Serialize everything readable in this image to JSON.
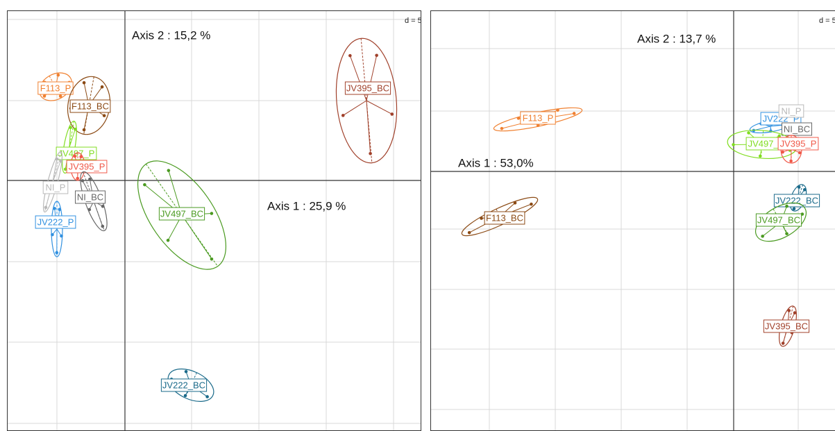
{
  "panels": [
    {
      "scale": "d = 5",
      "axis2": "Axis 2 : 15,2 %",
      "axis1": "Axis 1 : 25,9 %",
      "groups": [
        {
          "name": "F113_P",
          "color": "#f08030"
        },
        {
          "name": "F113_BC",
          "color": "#8b4a14"
        },
        {
          "name": "JV395_BC",
          "color": "#a0402a"
        },
        {
          "name": "JV497_P",
          "color": "#80dd20"
        },
        {
          "name": "JV395_P",
          "color": "#f05848"
        },
        {
          "name": "NI_P",
          "color": "#b8b8b8"
        },
        {
          "name": "NI_BC",
          "color": "#666666"
        },
        {
          "name": "JV222_P",
          "color": "#3090e0"
        },
        {
          "name": "JV497_BC",
          "color": "#4a9a20"
        },
        {
          "name": "JV222_BC",
          "color": "#1a6a8a"
        }
      ]
    },
    {
      "scale": "d = 5",
      "axis2": "Axis 2 : 13,7 %",
      "axis1": "Axis 1 : 53,0%",
      "groups": [
        {
          "name": "F113_P",
          "color": "#f08030"
        },
        {
          "name": "F113_BC",
          "color": "#8b4a14"
        },
        {
          "name": "JV222_P",
          "color": "#3090e0"
        },
        {
          "name": "NI_P",
          "color": "#b8b8b8"
        },
        {
          "name": "NI_BC",
          "color": "#666666"
        },
        {
          "name": "JV497_P",
          "color": "#80dd20"
        },
        {
          "name": "JV395_P",
          "color": "#f05848"
        },
        {
          "name": "JV222_BC",
          "color": "#1a6a8a"
        },
        {
          "name": "JV497_BC",
          "color": "#4a9a20"
        },
        {
          "name": "JV395_BC",
          "color": "#a0402a"
        }
      ]
    }
  ]
}
